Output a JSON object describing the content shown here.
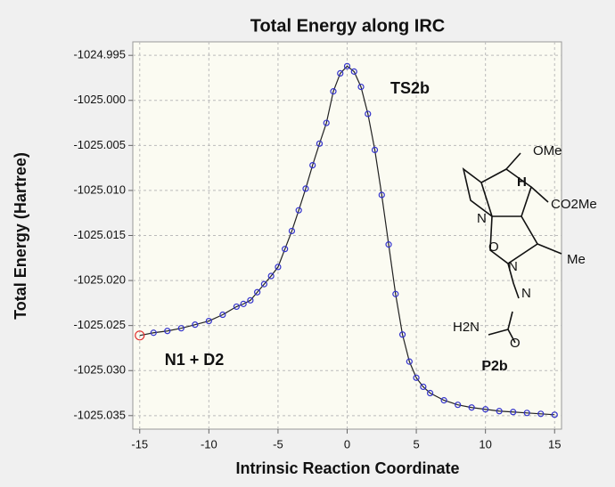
{
  "chart_data": {
    "type": "line",
    "title": "Total Energy along IRC",
    "xlabel": "Intrinsic Reaction Coordinate",
    "ylabel": "Total Energy (Hartree)",
    "annotations": [
      "TS2b",
      "N1 + D2",
      "P2b"
    ],
    "structure_labels": [
      "OMe",
      "H",
      "CO2Me",
      "N",
      "O",
      "Me",
      "N",
      "N",
      "H2N",
      "O"
    ],
    "x": [
      -15,
      -14,
      -13,
      -12,
      -11,
      -10,
      -9,
      -8,
      -7.5,
      -7,
      -6.5,
      -6,
      -5.5,
      -5,
      -4.5,
      -4,
      -3.5,
      -3,
      -2.5,
      -2,
      -1.5,
      -1,
      -0.5,
      0,
      0.5,
      1,
      1.5,
      2,
      2.5,
      3,
      3.5,
      4,
      4.5,
      5,
      5.5,
      6,
      7,
      8,
      9,
      10,
      11,
      12,
      13,
      14,
      15
    ],
    "series": [
      {
        "name": "IRC",
        "color": "#3333cc",
        "line_color": "#222222",
        "highlight_color": "#e03030",
        "values": [
          -1025.0261,
          -1025.0258,
          -1025.0256,
          -1025.0253,
          -1025.0249,
          -1025.0245,
          -1025.0238,
          -1025.0229,
          -1025.0226,
          -1025.0222,
          -1025.0213,
          -1025.0204,
          -1025.0195,
          -1025.0185,
          -1025.0165,
          -1025.0145,
          -1025.0122,
          -1025.0098,
          -1025.0072,
          -1025.0048,
          -1025.0025,
          -1024.999,
          -1024.997,
          -1024.9962,
          -1024.9968,
          -1024.9985,
          -1025.0015,
          -1025.0055,
          -1025.0105,
          -1025.016,
          -1025.0215,
          -1025.026,
          -1025.029,
          -1025.0308,
          -1025.0318,
          -1025.0325,
          -1025.0333,
          -1025.0338,
          -1025.0341,
          -1025.0343,
          -1025.0345,
          -1025.0346,
          -1025.0347,
          -1025.0348,
          -1025.0349
        ]
      }
    ],
    "xlim": [
      -15.5,
      15.5
    ],
    "ylim": [
      -1025.0365,
      -1024.9935
    ],
    "xticks": [
      -15,
      -10,
      -5,
      0,
      5,
      10,
      15
    ],
    "yticks": [
      {
        "value": -1024.995,
        "label": "-1024.995"
      },
      {
        "value": -1025.0,
        "label": "-1025.000"
      },
      {
        "value": -1025.005,
        "label": "-1025.005"
      },
      {
        "value": -1025.01,
        "label": "-1025.010"
      },
      {
        "value": -1025.015,
        "label": "-1025.015"
      },
      {
        "value": -1025.02,
        "label": "-1025.020"
      },
      {
        "value": -1025.025,
        "label": "-1025.025"
      },
      {
        "value": -1025.03,
        "label": "-1025.030"
      },
      {
        "value": -1025.035,
        "label": "-1025.035"
      }
    ],
    "grid": true
  }
}
